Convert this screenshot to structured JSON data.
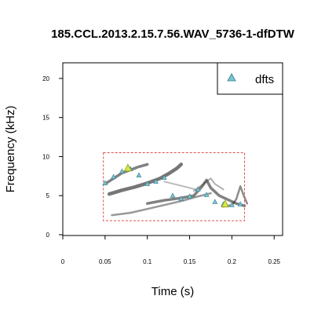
{
  "chart_data": {
    "type": "scatter",
    "title": "185.CCL.2013.2.15.7.56.WAV_5736-1-dfDTW",
    "xlabel": "Time (s)",
    "ylabel": "Frequency (kHz)",
    "xlim": [
      0,
      0.25
    ],
    "ylim": [
      0,
      20
    ],
    "x_ticks": [
      "0",
      "0.05",
      "0.1",
      "0.15",
      "0.2",
      "0.25"
    ],
    "y_ticks": [
      "0",
      "5",
      "10",
      "15",
      "20"
    ],
    "legend": {
      "position": "top-right",
      "entries": [
        "dfts"
      ]
    },
    "colors": {
      "dfts_fill": "#7fc3cf",
      "dfts_edge": "#2f7f92",
      "highlight": "#d8e84a",
      "selection_box": "#e05050",
      "spectrogram": "#1a1a1a"
    },
    "selection_box": {
      "x": [
        0.048,
        0.215
      ],
      "y": [
        1.8,
        10.5
      ]
    },
    "series": [
      {
        "name": "dfts",
        "x": [
          0.05,
          0.06,
          0.07,
          0.08,
          0.09,
          0.1,
          0.11,
          0.12,
          0.13,
          0.14,
          0.15,
          0.16,
          0.17,
          0.18,
          0.19,
          0.2,
          0.21
        ],
        "y": [
          6.6,
          7.4,
          8.1,
          8.4,
          7.6,
          6.5,
          6.8,
          7.3,
          5.0,
          4.6,
          4.9,
          5.8,
          5.1,
          4.2,
          3.9,
          3.8,
          3.9
        ]
      }
    ],
    "highlight_points": [
      {
        "x": 0.077,
        "y": 8.5
      },
      {
        "x": 0.192,
        "y": 3.9
      }
    ]
  }
}
